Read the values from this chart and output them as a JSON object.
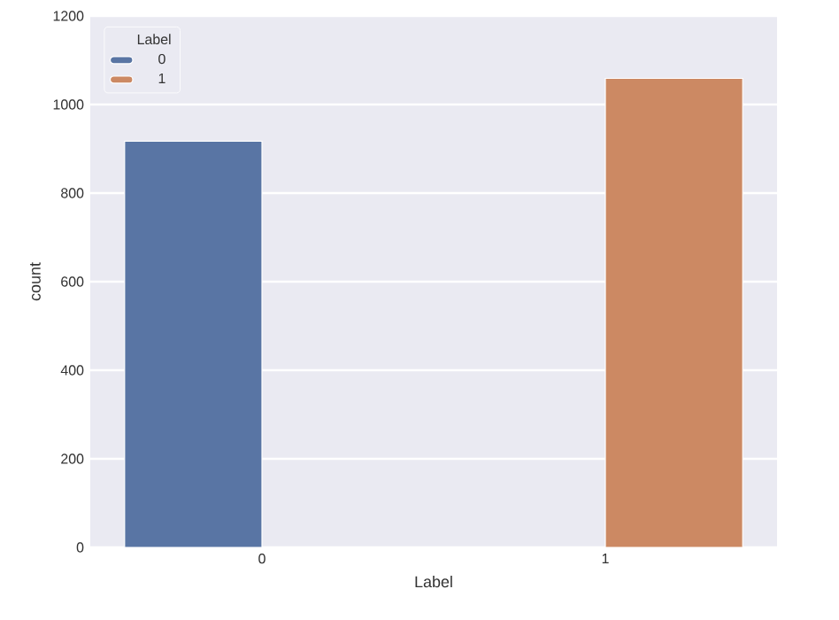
{
  "chart_data": {
    "type": "bar",
    "xlabel": "Label",
    "ylabel": "count",
    "legend_title": "Label",
    "categories": [
      "0",
      "1"
    ],
    "series": [
      {
        "name": "0",
        "color": "#5975a4",
        "values": [
          917,
          null
        ]
      },
      {
        "name": "1",
        "color": "#cc8963",
        "values": [
          null,
          1059
        ]
      }
    ],
    "ylim": [
      0,
      1200
    ],
    "yticks": [
      0,
      200,
      400,
      600,
      800,
      1000,
      1200
    ],
    "grid": "y",
    "legend": "top left"
  }
}
